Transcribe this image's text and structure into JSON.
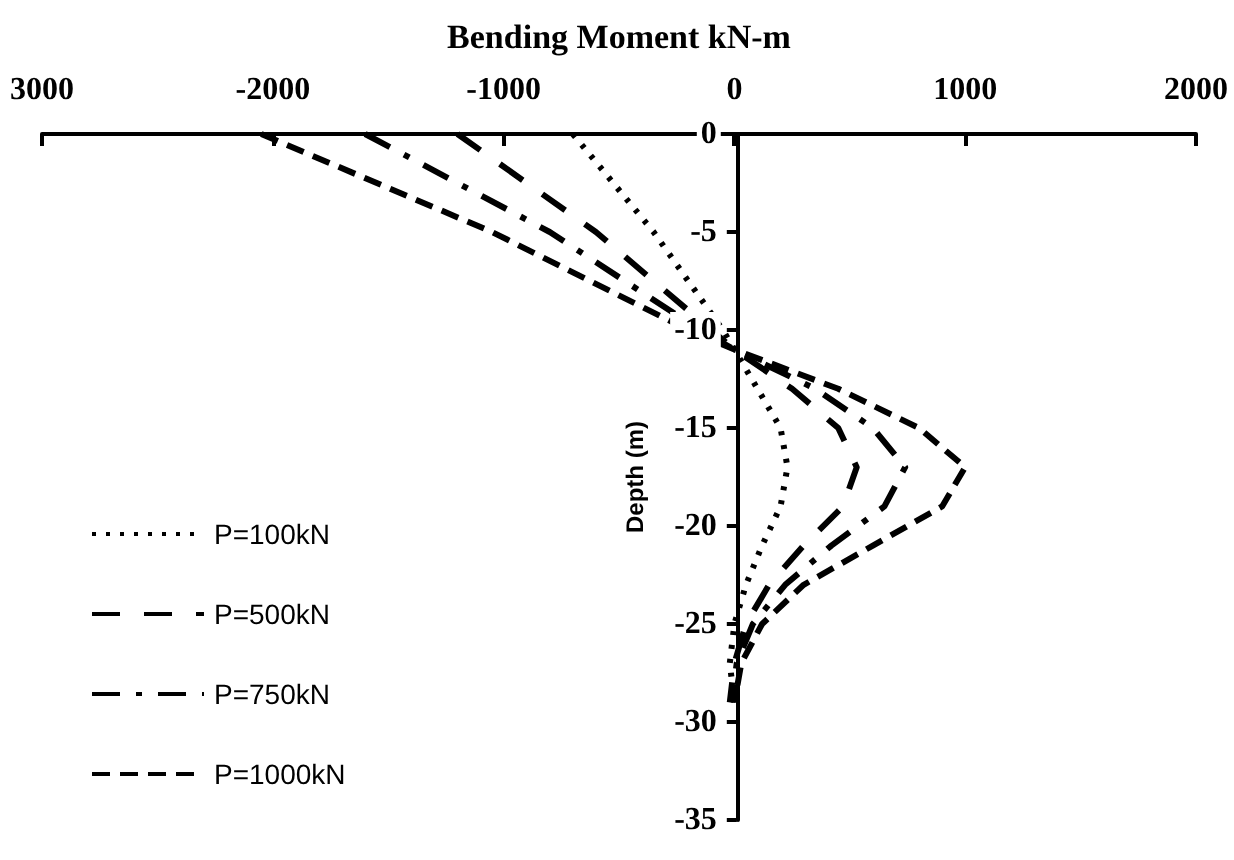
{
  "chart_data": {
    "type": "line",
    "xlabel": "Bending Moment kN-m",
    "ylabel": "Depth (m)",
    "xlim": [
      -3000,
      2000
    ],
    "xticks": [
      {
        "value": -3000,
        "label": "3000"
      },
      -2000,
      -1000,
      0,
      1000,
      2000
    ],
    "ylim": [
      -35,
      0
    ],
    "yticks": [
      -35,
      -30,
      -25,
      -20,
      -15,
      -10,
      -5,
      0
    ],
    "legend": "left",
    "marker": "none",
    "series": [
      {
        "name": "P=100kN",
        "color": "#000000",
        "line_style": "dotted",
        "x": [
          -700,
          -350,
          -50,
          0,
          100,
          200,
          230,
          200,
          120,
          50,
          0,
          -20,
          0
        ],
        "values": [
          0,
          -5,
          -10,
          -11,
          -13,
          -15,
          -17,
          -19,
          -21,
          -23,
          -25,
          -27,
          -29
        ]
      },
      {
        "name": "P=500kN",
        "color": "#000000",
        "line_style": "long-dashed",
        "x": [
          -1200,
          -600,
          -100,
          0,
          250,
          450,
          530,
          470,
          300,
          150,
          50,
          0,
          -20
        ],
        "values": [
          0,
          -5,
          -10,
          -11,
          -13,
          -15,
          -17,
          -19,
          -21,
          -23,
          -25,
          -27,
          -29
        ]
      },
      {
        "name": "P=750kN",
        "color": "#000000",
        "line_style": "dashdot",
        "x": [
          -1600,
          -800,
          -150,
          0,
          350,
          600,
          740,
          650,
          420,
          220,
          80,
          10,
          -10
        ],
        "values": [
          0,
          -5,
          -10,
          -11,
          -13,
          -15,
          -17,
          -19,
          -21,
          -23,
          -25,
          -27,
          -29
        ]
      },
      {
        "name": "P=1000kN",
        "color": "#000000",
        "line_style": "dashed",
        "x": [
          -2050,
          -1050,
          -200,
          0,
          450,
          800,
          1000,
          900,
          600,
          300,
          120,
          30,
          0
        ],
        "values": [
          0,
          -5,
          -10,
          -11,
          -13,
          -15,
          -17,
          -19,
          -21,
          -23,
          -25,
          -27,
          -29
        ]
      }
    ]
  }
}
